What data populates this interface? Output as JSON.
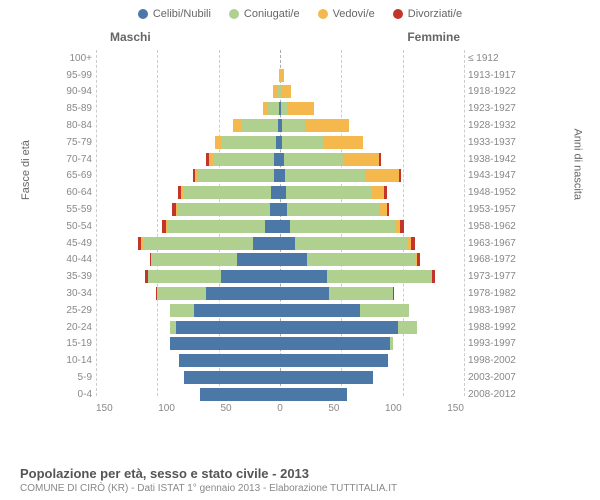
{
  "legend": [
    {
      "label": "Celibi/Nubili",
      "color": "#4b78a6"
    },
    {
      "label": "Coniugati/e",
      "color": "#b0d090"
    },
    {
      "label": "Vedovi/e",
      "color": "#f5b84d"
    },
    {
      "label": "Divorziati/e",
      "color": "#c1352b"
    }
  ],
  "gender_m": "Maschi",
  "gender_f": "Femmine",
  "y_label": "Fasce di età",
  "y2_label": "Anni di nascita",
  "x_ticks": [
    "150",
    "100",
    "50",
    "0",
    "50",
    "100",
    "150"
  ],
  "max_value": 150,
  "title": "Popolazione per età, sesso e stato civile - 2013",
  "subtitle": "COMUNE DI CIRÒ (KR) - Dati ISTAT 1° gennaio 2013 - Elaborazione TUTTITALIA.IT",
  "rows": [
    {
      "age": "100+",
      "birth": "≤ 1912",
      "m": [
        0,
        0,
        0,
        0
      ],
      "f": [
        0,
        0,
        0,
        0
      ]
    },
    {
      "age": "95-99",
      "birth": "1913-1917",
      "m": [
        0,
        0,
        1,
        0
      ],
      "f": [
        0,
        0,
        3,
        0
      ]
    },
    {
      "age": "90-94",
      "birth": "1918-1922",
      "m": [
        0,
        2,
        4,
        0
      ],
      "f": [
        0,
        1,
        8,
        0
      ]
    },
    {
      "age": "85-89",
      "birth": "1923-1927",
      "m": [
        1,
        10,
        3,
        0
      ],
      "f": [
        1,
        5,
        22,
        0
      ]
    },
    {
      "age": "80-84",
      "birth": "1928-1932",
      "m": [
        2,
        30,
        6,
        0
      ],
      "f": [
        2,
        18,
        36,
        0
      ]
    },
    {
      "age": "75-79",
      "birth": "1933-1937",
      "m": [
        3,
        45,
        5,
        0
      ],
      "f": [
        2,
        34,
        32,
        0
      ]
    },
    {
      "age": "70-74",
      "birth": "1938-1942",
      "m": [
        5,
        50,
        3,
        2
      ],
      "f": [
        3,
        48,
        30,
        1
      ]
    },
    {
      "age": "65-69",
      "birth": "1943-1947",
      "m": [
        5,
        62,
        2,
        2
      ],
      "f": [
        4,
        65,
        28,
        2
      ]
    },
    {
      "age": "60-64",
      "birth": "1948-1952",
      "m": [
        7,
        72,
        2,
        2
      ],
      "f": [
        5,
        70,
        10,
        2
      ]
    },
    {
      "age": "55-59",
      "birth": "1953-1957",
      "m": [
        8,
        76,
        1,
        3
      ],
      "f": [
        6,
        75,
        6,
        2
      ]
    },
    {
      "age": "50-54",
      "birth": "1958-1962",
      "m": [
        12,
        80,
        1,
        3
      ],
      "f": [
        8,
        86,
        4,
        3
      ]
    },
    {
      "age": "45-49",
      "birth": "1963-1967",
      "m": [
        22,
        90,
        1,
        3
      ],
      "f": [
        12,
        92,
        3,
        3
      ]
    },
    {
      "age": "40-44",
      "birth": "1968-1972",
      "m": [
        35,
        70,
        0,
        1
      ],
      "f": [
        22,
        88,
        2,
        2
      ]
    },
    {
      "age": "35-39",
      "birth": "1973-1977",
      "m": [
        48,
        60,
        0,
        2
      ],
      "f": [
        38,
        85,
        1,
        2
      ]
    },
    {
      "age": "30-34",
      "birth": "1978-1982",
      "m": [
        60,
        40,
        0,
        1
      ],
      "f": [
        40,
        52,
        0,
        1
      ]
    },
    {
      "age": "25-29",
      "birth": "1983-1987",
      "m": [
        70,
        20,
        0,
        0
      ],
      "f": [
        65,
        40,
        0,
        0
      ]
    },
    {
      "age": "20-24",
      "birth": "1988-1992",
      "m": [
        85,
        5,
        0,
        0
      ],
      "f": [
        96,
        16,
        0,
        0
      ]
    },
    {
      "age": "15-19",
      "birth": "1993-1997",
      "m": [
        90,
        0,
        0,
        0
      ],
      "f": [
        90,
        2,
        0,
        0
      ]
    },
    {
      "age": "10-14",
      "birth": "1998-2002",
      "m": [
        82,
        0,
        0,
        0
      ],
      "f": [
        88,
        0,
        0,
        0
      ]
    },
    {
      "age": "5-9",
      "birth": "2003-2007",
      "m": [
        78,
        0,
        0,
        0
      ],
      "f": [
        76,
        0,
        0,
        0
      ]
    },
    {
      "age": "0-4",
      "birth": "2008-2012",
      "m": [
        65,
        0,
        0,
        0
      ],
      "f": [
        55,
        0,
        0,
        0
      ]
    }
  ]
}
